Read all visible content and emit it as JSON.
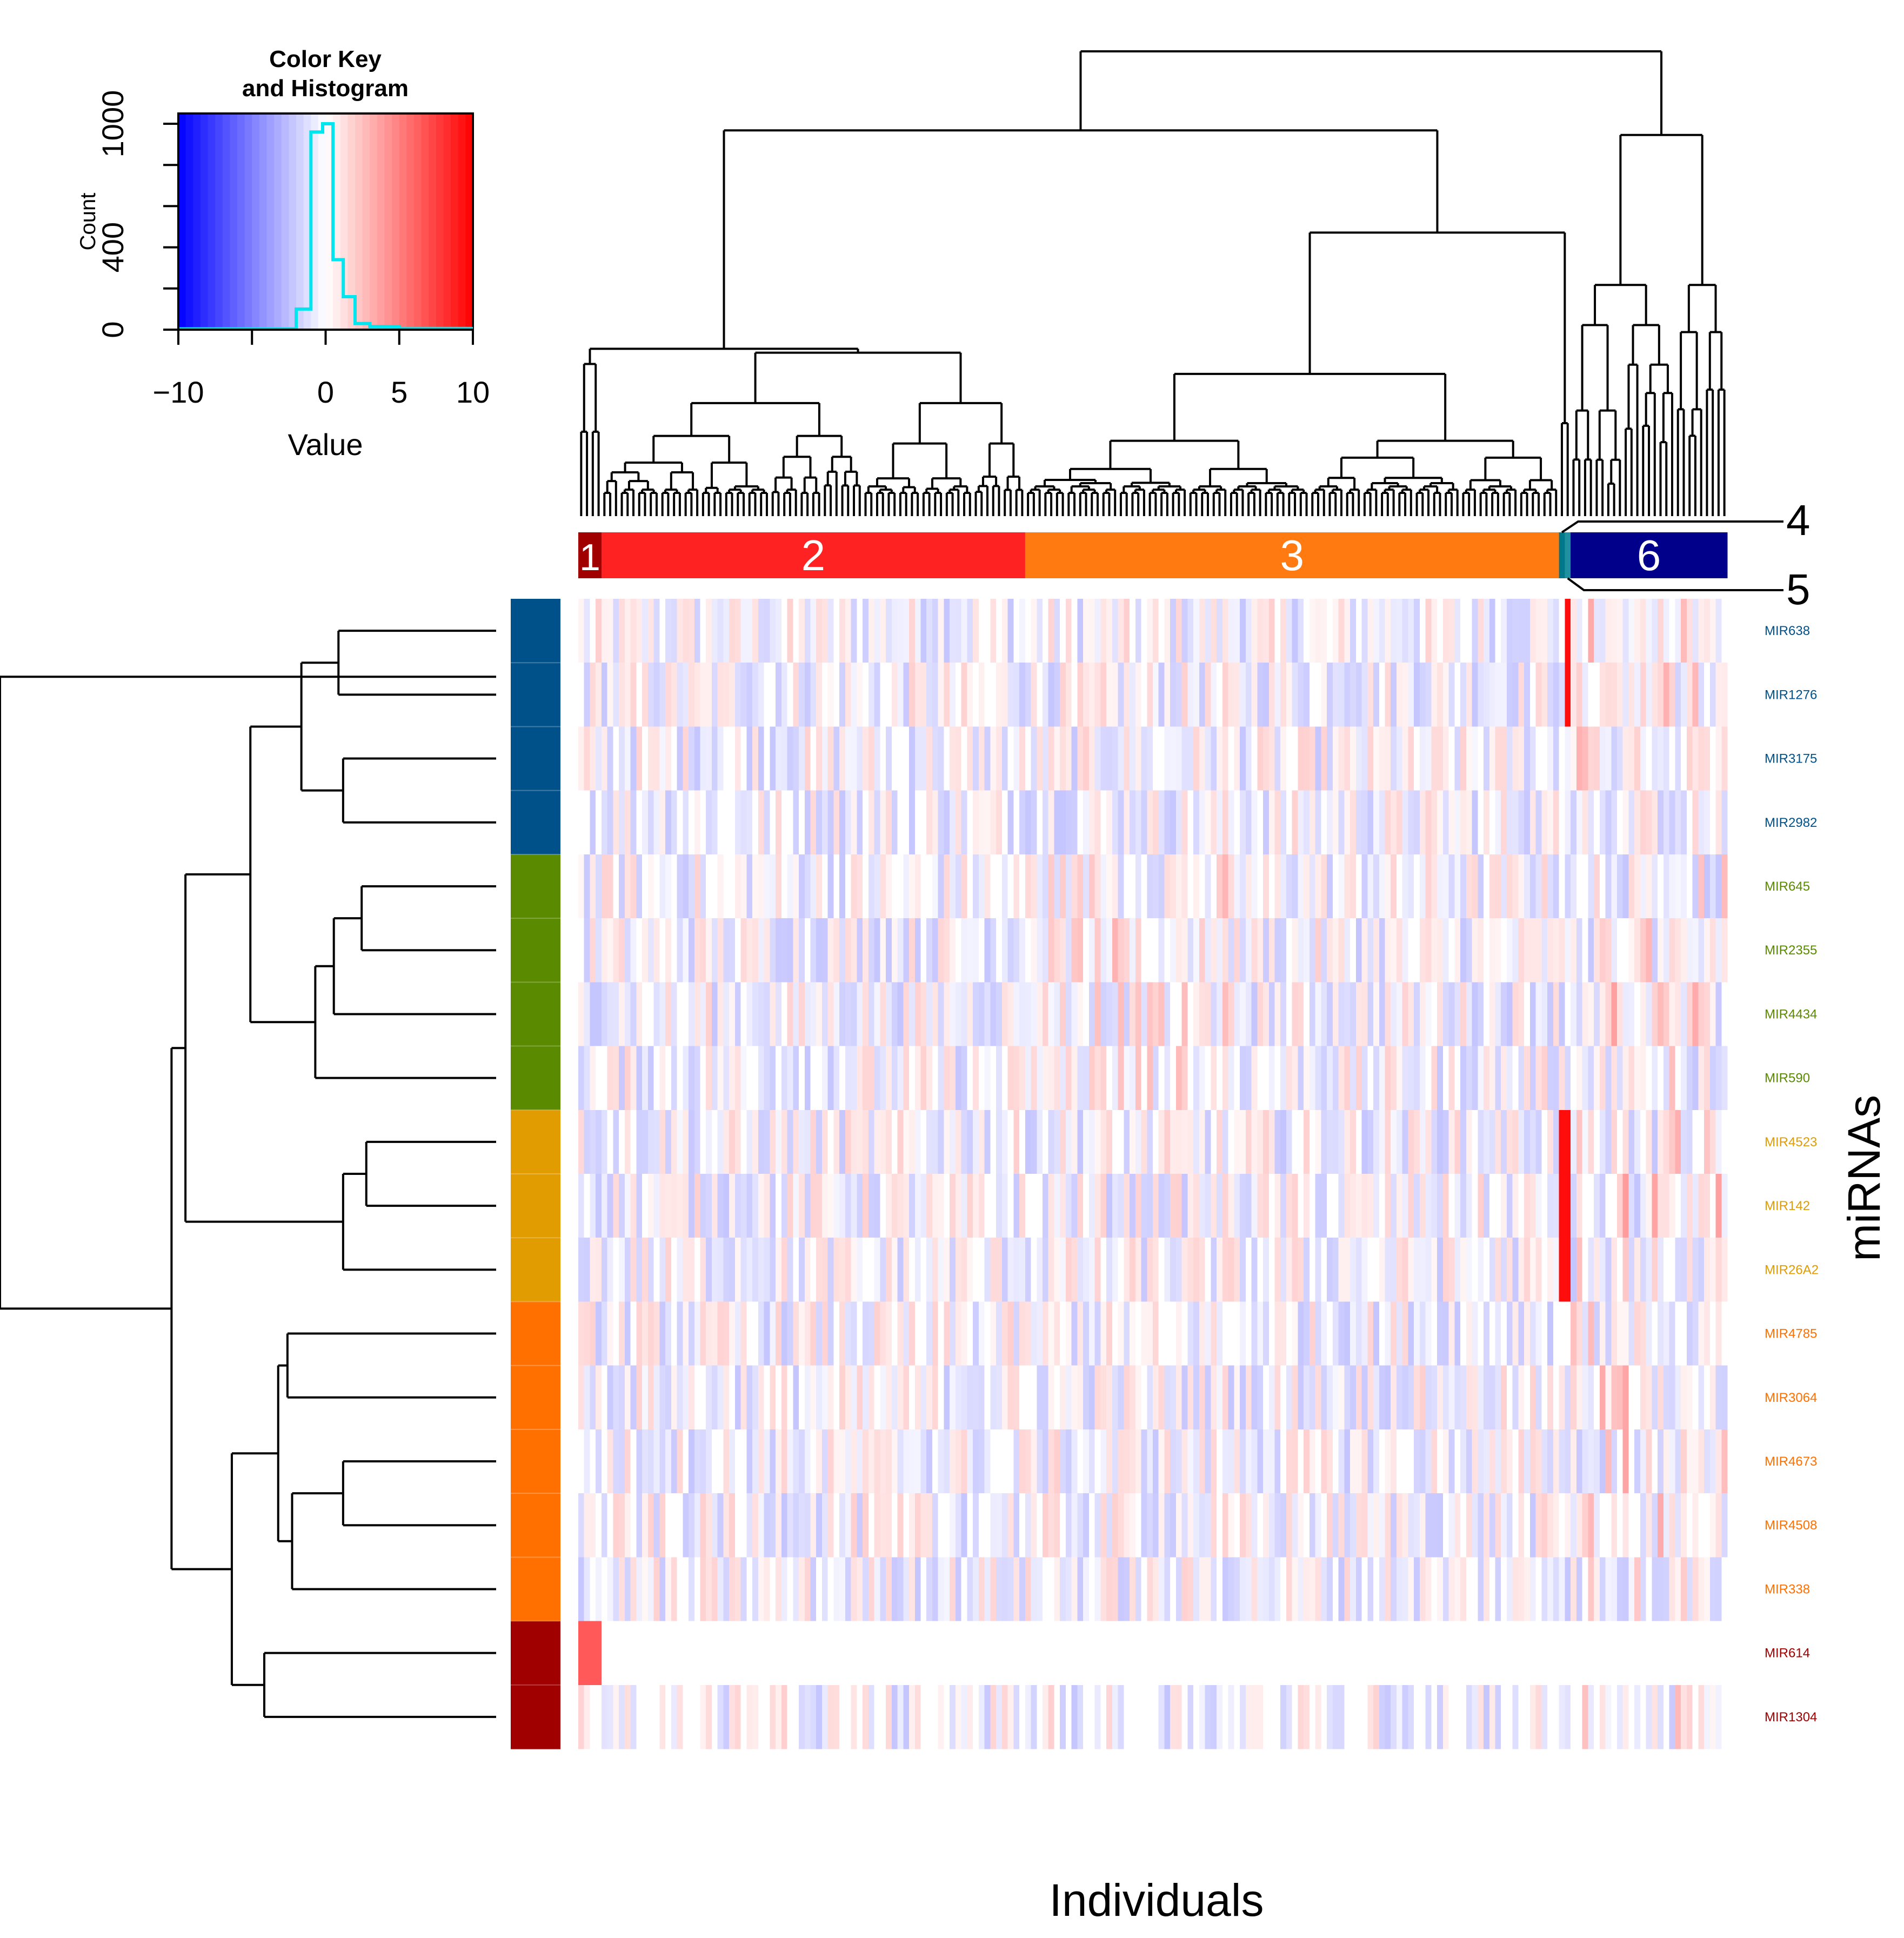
{
  "colors": {
    "low": "#0000ff",
    "mid": "#ffffff",
    "high": "#ff0000",
    "histogram": "#00e5ee"
  },
  "color_key": {
    "title_line1": "Color Key",
    "title_line2": "and Histogram",
    "xlabel": "Value",
    "ylabel": "Count",
    "x_ticks": [
      "−10",
      "0",
      "5",
      "10"
    ],
    "y_ticks": [
      "0",
      "400",
      "1000"
    ]
  },
  "chart_data": {
    "type": "heatmap",
    "xlabel": "Individuals",
    "ylabel": "miRNAs",
    "value_range": [
      -10,
      10
    ],
    "rows": [
      {
        "label": "MIR638",
        "group_color": "#00518a"
      },
      {
        "label": "MIR1276",
        "group_color": "#00518a"
      },
      {
        "label": "MIR3175",
        "group_color": "#00518a"
      },
      {
        "label": "MIR2982",
        "group_color": "#00518a"
      },
      {
        "label": "MIR645",
        "group_color": "#5a8a00"
      },
      {
        "label": "MIR2355",
        "group_color": "#5a8a00"
      },
      {
        "label": "MIR4434",
        "group_color": "#5a8a00"
      },
      {
        "label": "MIR590",
        "group_color": "#5a8a00"
      },
      {
        "label": "MIR4523",
        "group_color": "#e09c00"
      },
      {
        "label": "MIR142",
        "group_color": "#e09c00"
      },
      {
        "label": "MIR26A2",
        "group_color": "#e09c00"
      },
      {
        "label": "MIR4785",
        "group_color": "#ff7000"
      },
      {
        "label": "MIR3064",
        "group_color": "#ff7000"
      },
      {
        "label": "MIR4673",
        "group_color": "#ff7000"
      },
      {
        "label": "MIR4508",
        "group_color": "#ff7000"
      },
      {
        "label": "MIR338",
        "group_color": "#ff7000"
      },
      {
        "label": "MIR614",
        "group_color": "#a00000"
      },
      {
        "label": "MIR1304",
        "group_color": "#a00000"
      }
    ],
    "column_clusters": [
      {
        "label": "1",
        "color": "#a00000",
        "n": 4
      },
      {
        "label": "2",
        "color": "#ff2222",
        "n": 73
      },
      {
        "label": "3",
        "color": "#ff7a10",
        "n": 92
      },
      {
        "label": "4",
        "color": "#00788a",
        "n": 1
      },
      {
        "label": "5",
        "color": "#1e90a0",
        "n": 1
      },
      {
        "label": "6",
        "color": "#00008b",
        "n": 27
      }
    ]
  }
}
